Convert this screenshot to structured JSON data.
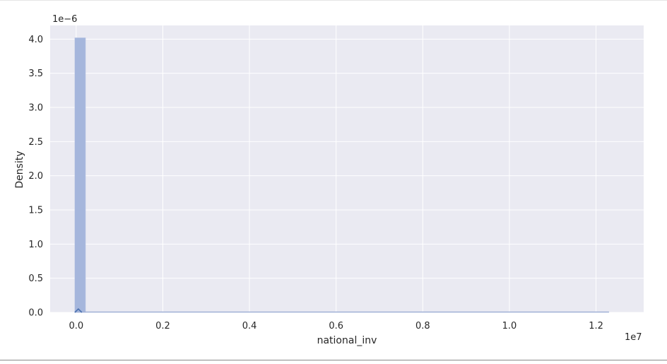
{
  "chart_data": {
    "type": "histogram",
    "xlabel": "national_inv",
    "ylabel": "Density",
    "x_scale_label": "1e7",
    "y_scale_label": "1e−6",
    "xlim": [
      -0.06,
      1.31
    ],
    "ylim": [
      0,
      4.2
    ],
    "x_ticks": [
      0.0,
      0.2,
      0.4,
      0.6,
      0.8,
      1.0,
      1.2
    ],
    "x_tick_labels": [
      "0.0",
      "0.2",
      "0.4",
      "0.6",
      "0.8",
      "1.0",
      "1.2"
    ],
    "y_ticks": [
      0.0,
      0.5,
      1.0,
      1.5,
      2.0,
      2.5,
      3.0,
      3.5,
      4.0
    ],
    "y_tick_labels": [
      "0.0",
      "0.5",
      "1.0",
      "1.5",
      "2.0",
      "2.5",
      "3.0",
      "3.5",
      "4.0"
    ],
    "bars": [
      {
        "x0": -0.0033,
        "x1": 0.0217,
        "density": 4.02
      }
    ],
    "baseline_extent": [
      -0.0033,
      1.23
    ],
    "kde_peak": {
      "x": 0.005,
      "density": 0.05
    },
    "grid": true,
    "colors": {
      "plot_background": "#eaeaf2",
      "grid": "#ffffff",
      "bar_fill": "#a5b6dc",
      "line": "#4c72b0"
    }
  }
}
